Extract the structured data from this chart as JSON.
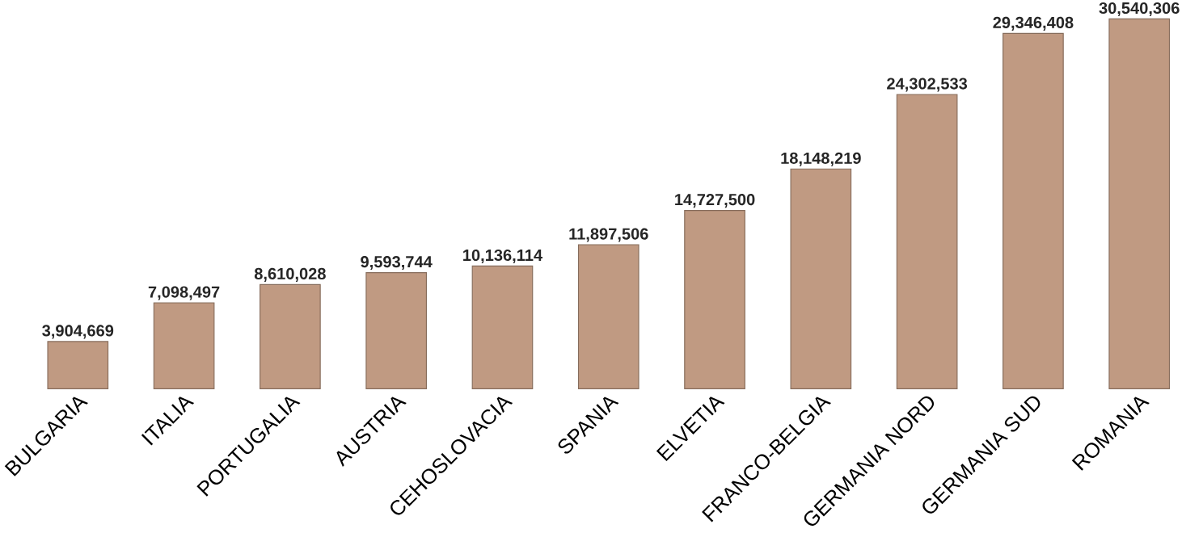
{
  "chart_data": {
    "type": "bar",
    "categories": [
      "BULGARIA",
      "ITALIA",
      "PORTUGALIA",
      "AUSTRIA",
      "CEHOSLOVACIA",
      "SPANIA",
      "ELVETIA",
      "FRANCO-BELGIA",
      "GERMANIA NORD",
      "GERMANIA SUD",
      "ROMANIA"
    ],
    "values": [
      3904669,
      7098497,
      8610028,
      9593744,
      10136114,
      11897506,
      14727500,
      18148219,
      24302533,
      29346408,
      30540306
    ],
    "value_labels": [
      "3,904,669",
      "7,098,497",
      "8,610,028",
      "9,593,744",
      "10,136,114",
      "11,897,506",
      "14,727,500",
      "18,148,219",
      "24,302,533",
      "29,346,408",
      "30,540,306"
    ],
    "color": "#c09a82"
  }
}
